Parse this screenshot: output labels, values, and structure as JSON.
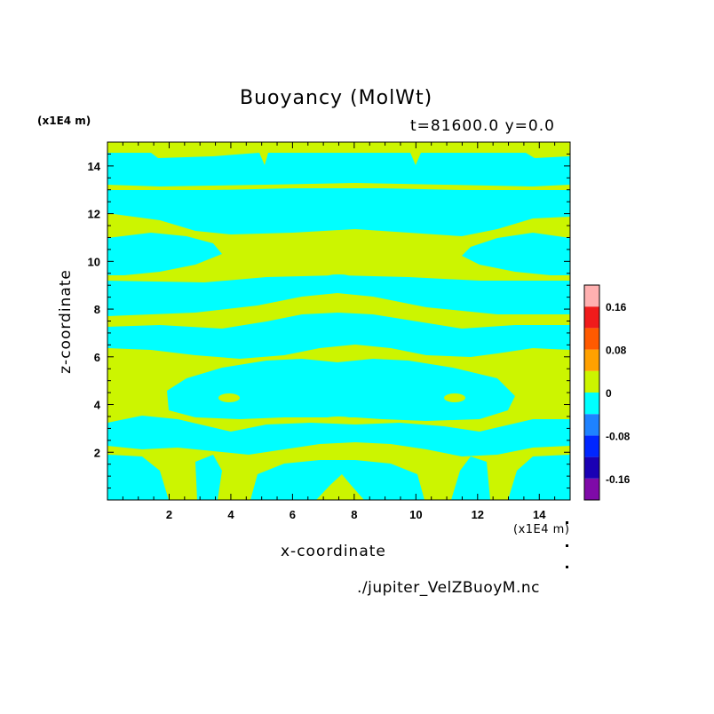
{
  "chart_data": {
    "type": "heatmap",
    "title": "Buoyancy (MolWt)",
    "subtitle": "t=81600.0 y=0.0",
    "xlabel": "x-coordinate",
    "ylabel": "z-coordinate",
    "x_units": "(x1E4 m)",
    "y_units": "(x1E4 m)",
    "source_file": "./jupiter_VelZBuoyM.nc",
    "xlim": [
      0,
      15
    ],
    "ylim": [
      0,
      15
    ],
    "x_ticks": [
      2,
      4,
      6,
      8,
      10,
      12,
      14
    ],
    "y_ticks": [
      2,
      4,
      6,
      8,
      10,
      12,
      14
    ],
    "colorbar": {
      "levels": [
        -0.2,
        -0.16,
        -0.12,
        -0.08,
        -0.04,
        0,
        0.04,
        0.08,
        0.12,
        0.16,
        0.2
      ],
      "colors": [
        "#7f0aa8",
        "#1a00b4",
        "#0026ff",
        "#1e82ff",
        "#00ffff",
        "#ccf500",
        "#ffa100",
        "#ff5a00",
        "#f01b1b",
        "#ffb0b0"
      ],
      "tick_labels": [
        "-0.16",
        "-0.08",
        "0",
        "0.08",
        "0.16"
      ]
    },
    "field_colors": {
      "positive": "#ccf500",
      "negative": "#00ffff"
    },
    "regions": [
      {
        "band": "z 14.5-15",
        "category": "0 to 0.04",
        "note": "narrow positive strip at top"
      },
      {
        "band": "z 13.2-14.5",
        "category": "-0.04 to 0",
        "note": "negative band with positive notches near x 5 and 10"
      },
      {
        "band": "z 12.5-13.2",
        "category": "0 to 0.04",
        "note": "positive strip"
      },
      {
        "band": "z 11.5-12.5",
        "category": "-0.04 to 0",
        "note": "negative band"
      },
      {
        "band": "z 9.2-11.5",
        "category": "0 to 0.04",
        "note": "large positive lens centered near x 7.5"
      },
      {
        "band": "z 8.2-9.2",
        "category": "-0.04 to 0",
        "note": "negative band"
      },
      {
        "band": "z 5-8",
        "category": "0 to 0.04",
        "note": "positive with negative lobes on the edges"
      },
      {
        "band": "z 2.5-5",
        "category": "-0.04 to 0",
        "note": "negative arch with small positive eyes near x 4 and 11"
      },
      {
        "band": "z 0-2.5",
        "category": "mixed",
        "note": "positive and negative plumes near the bottom"
      }
    ]
  }
}
